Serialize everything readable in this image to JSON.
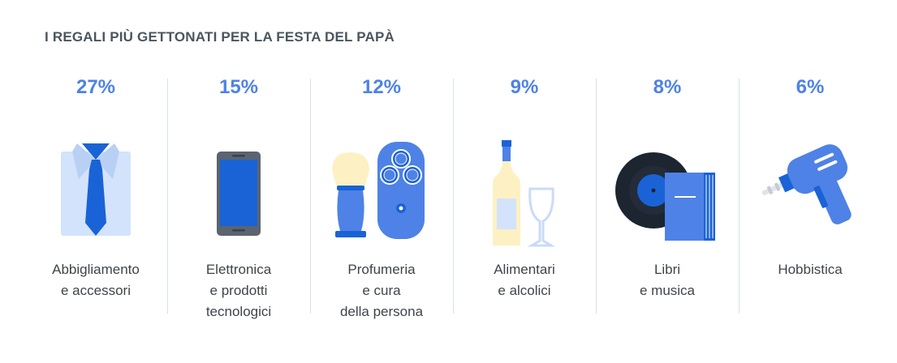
{
  "title": "I REGALI PIÙ GETTONATI PER LA FESTA DEL PAPÀ",
  "colors": {
    "accent": "#4e82e6",
    "dark_blue": "#1a63d6",
    "light_blue": "#d3e3fb",
    "text": "#3f444a",
    "divider": "#d6e1ec"
  },
  "chart_data": {
    "type": "table",
    "title": "I REGALI PIÙ GETTONATI PER LA FESTA DEL PAPÀ",
    "categories": [
      "Abbigliamento e accessori",
      "Elettronica e prodotti tecnologici",
      "Profumeria e cura della persona",
      "Alimentari e alcolici",
      "Libri e musica",
      "Hobbistica"
    ],
    "values": [
      27,
      15,
      12,
      9,
      8,
      6
    ],
    "unit": "%"
  },
  "items": [
    {
      "value_label": "27%",
      "icon": "shirt-tie-icon",
      "label_lines": [
        "Abbigliamento",
        "e accessori"
      ]
    },
    {
      "value_label": "15%",
      "icon": "smartphone-icon",
      "label_lines": [
        "Elettronica",
        "e prodotti",
        "tecnologici"
      ]
    },
    {
      "value_label": "12%",
      "icon": "shaving-brush-razor-icon",
      "label_lines": [
        "Profumeria",
        "e cura",
        "della persona"
      ]
    },
    {
      "value_label": "9%",
      "icon": "wine-bottle-glass-icon",
      "label_lines": [
        "Alimentari",
        "e alcolici"
      ]
    },
    {
      "value_label": "8%",
      "icon": "vinyl-book-icon",
      "label_lines": [
        "Libri",
        "e musica"
      ]
    },
    {
      "value_label": "6%",
      "icon": "drill-icon",
      "label_lines": [
        "Hobbistica"
      ]
    }
  ]
}
